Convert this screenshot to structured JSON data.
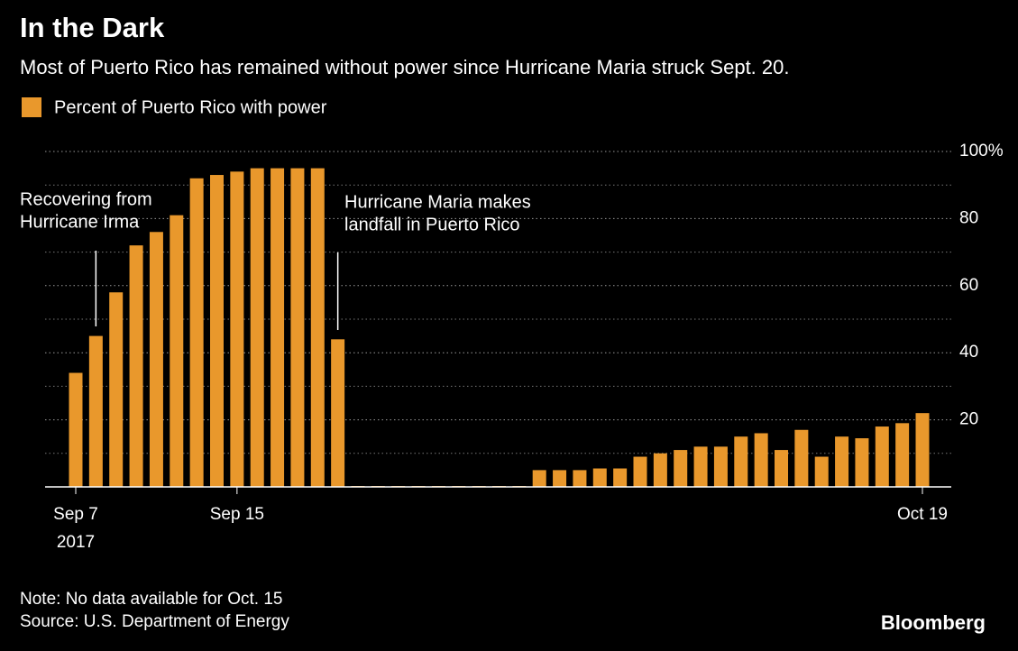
{
  "chart_data": {
    "type": "bar",
    "title": "In the Dark",
    "subtitle": "Most of Puerto Rico has remained without power since Hurricane Maria struck Sept. 20.",
    "legend": "Percent of Puerto Rico with power",
    "color": "#e9982c",
    "categories": [
      "Sep 7",
      null,
      null,
      null,
      null,
      null,
      null,
      null,
      "Sep 15",
      null,
      null,
      null,
      null,
      null,
      null,
      null,
      null,
      null,
      null,
      null,
      null,
      null,
      null,
      null,
      null,
      null,
      null,
      null,
      null,
      null,
      null,
      null,
      null,
      null,
      null,
      null,
      null,
      null,
      null,
      null,
      null,
      null,
      "Oct 19"
    ],
    "year_label": "2017",
    "values": [
      34,
      45,
      58,
      72,
      76,
      81,
      92,
      93,
      94,
      95,
      95,
      95,
      95,
      44,
      0,
      0,
      0,
      0,
      0,
      0,
      0,
      0,
      0,
      5,
      5,
      5,
      5.5,
      5.5,
      9,
      10,
      11,
      12,
      12,
      15,
      16,
      11,
      17,
      9,
      15,
      14.5,
      18,
      19,
      22
    ],
    "ylim": [
      0,
      100
    ],
    "yticks": [
      20,
      40,
      60,
      80,
      {
        "value": 100,
        "label": "100%"
      }
    ],
    "minor_yticks": [
      10,
      30,
      50,
      70,
      90
    ],
    "grid": true,
    "annotations": [
      {
        "lines": [
          "Recovering from",
          "Hurricane Irma"
        ]
      },
      {
        "lines": [
          "Hurricane Maria makes",
          "landfall in Puerto Rico"
        ]
      }
    ],
    "notes": [
      "Note: No data available for Oct. 15",
      "Source: U.S. Department of Energy"
    ],
    "brand": "Bloomberg"
  }
}
